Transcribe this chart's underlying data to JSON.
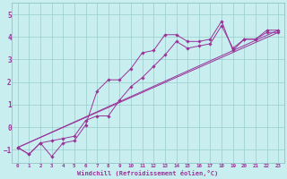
{
  "title": "",
  "xlabel": "Windchill (Refroidissement éolien,°C)",
  "bg_color": "#c8eef0",
  "line_color": "#993399",
  "grid_color": "#99cccc",
  "xlim": [
    -0.5,
    23.5
  ],
  "ylim": [
    -1.6,
    5.5
  ],
  "yticks": [
    -1,
    0,
    1,
    2,
    3,
    4,
    5
  ],
  "xticks": [
    0,
    1,
    2,
    3,
    4,
    5,
    6,
    7,
    8,
    9,
    10,
    11,
    12,
    13,
    14,
    15,
    16,
    17,
    18,
    19,
    20,
    21,
    22,
    23
  ],
  "series": [
    {
      "x": [
        0,
        1,
        2,
        3,
        4,
        5,
        6,
        7,
        8,
        9,
        10,
        11,
        12,
        13,
        14,
        15,
        16,
        17,
        18,
        19,
        20,
        21,
        22,
        23
      ],
      "y": [
        -0.9,
        -1.2,
        -0.7,
        -1.3,
        -0.7,
        -0.6,
        0.1,
        1.6,
        2.1,
        2.1,
        2.6,
        3.3,
        3.4,
        4.1,
        4.1,
        3.8,
        3.8,
        3.9,
        4.7,
        3.4,
        3.9,
        3.9,
        4.3,
        4.3
      ],
      "marker": true
    },
    {
      "x": [
        0,
        1,
        2,
        3,
        4,
        5,
        6,
        7,
        8,
        9,
        10,
        11,
        12,
        13,
        14,
        15,
        16,
        17,
        18,
        19,
        20,
        21,
        22,
        23
      ],
      "y": [
        -0.9,
        -1.2,
        -0.7,
        -0.6,
        -0.5,
        -0.4,
        0.3,
        0.5,
        0.5,
        1.2,
        1.8,
        2.2,
        2.7,
        3.2,
        3.8,
        3.5,
        3.6,
        3.7,
        4.5,
        3.5,
        3.9,
        3.9,
        4.2,
        4.2
      ],
      "marker": true
    },
    {
      "x": [
        0,
        23
      ],
      "y": [
        -0.9,
        4.3
      ],
      "marker": false
    },
    {
      "x": [
        0,
        23
      ],
      "y": [
        -0.9,
        4.2
      ],
      "marker": false
    }
  ]
}
